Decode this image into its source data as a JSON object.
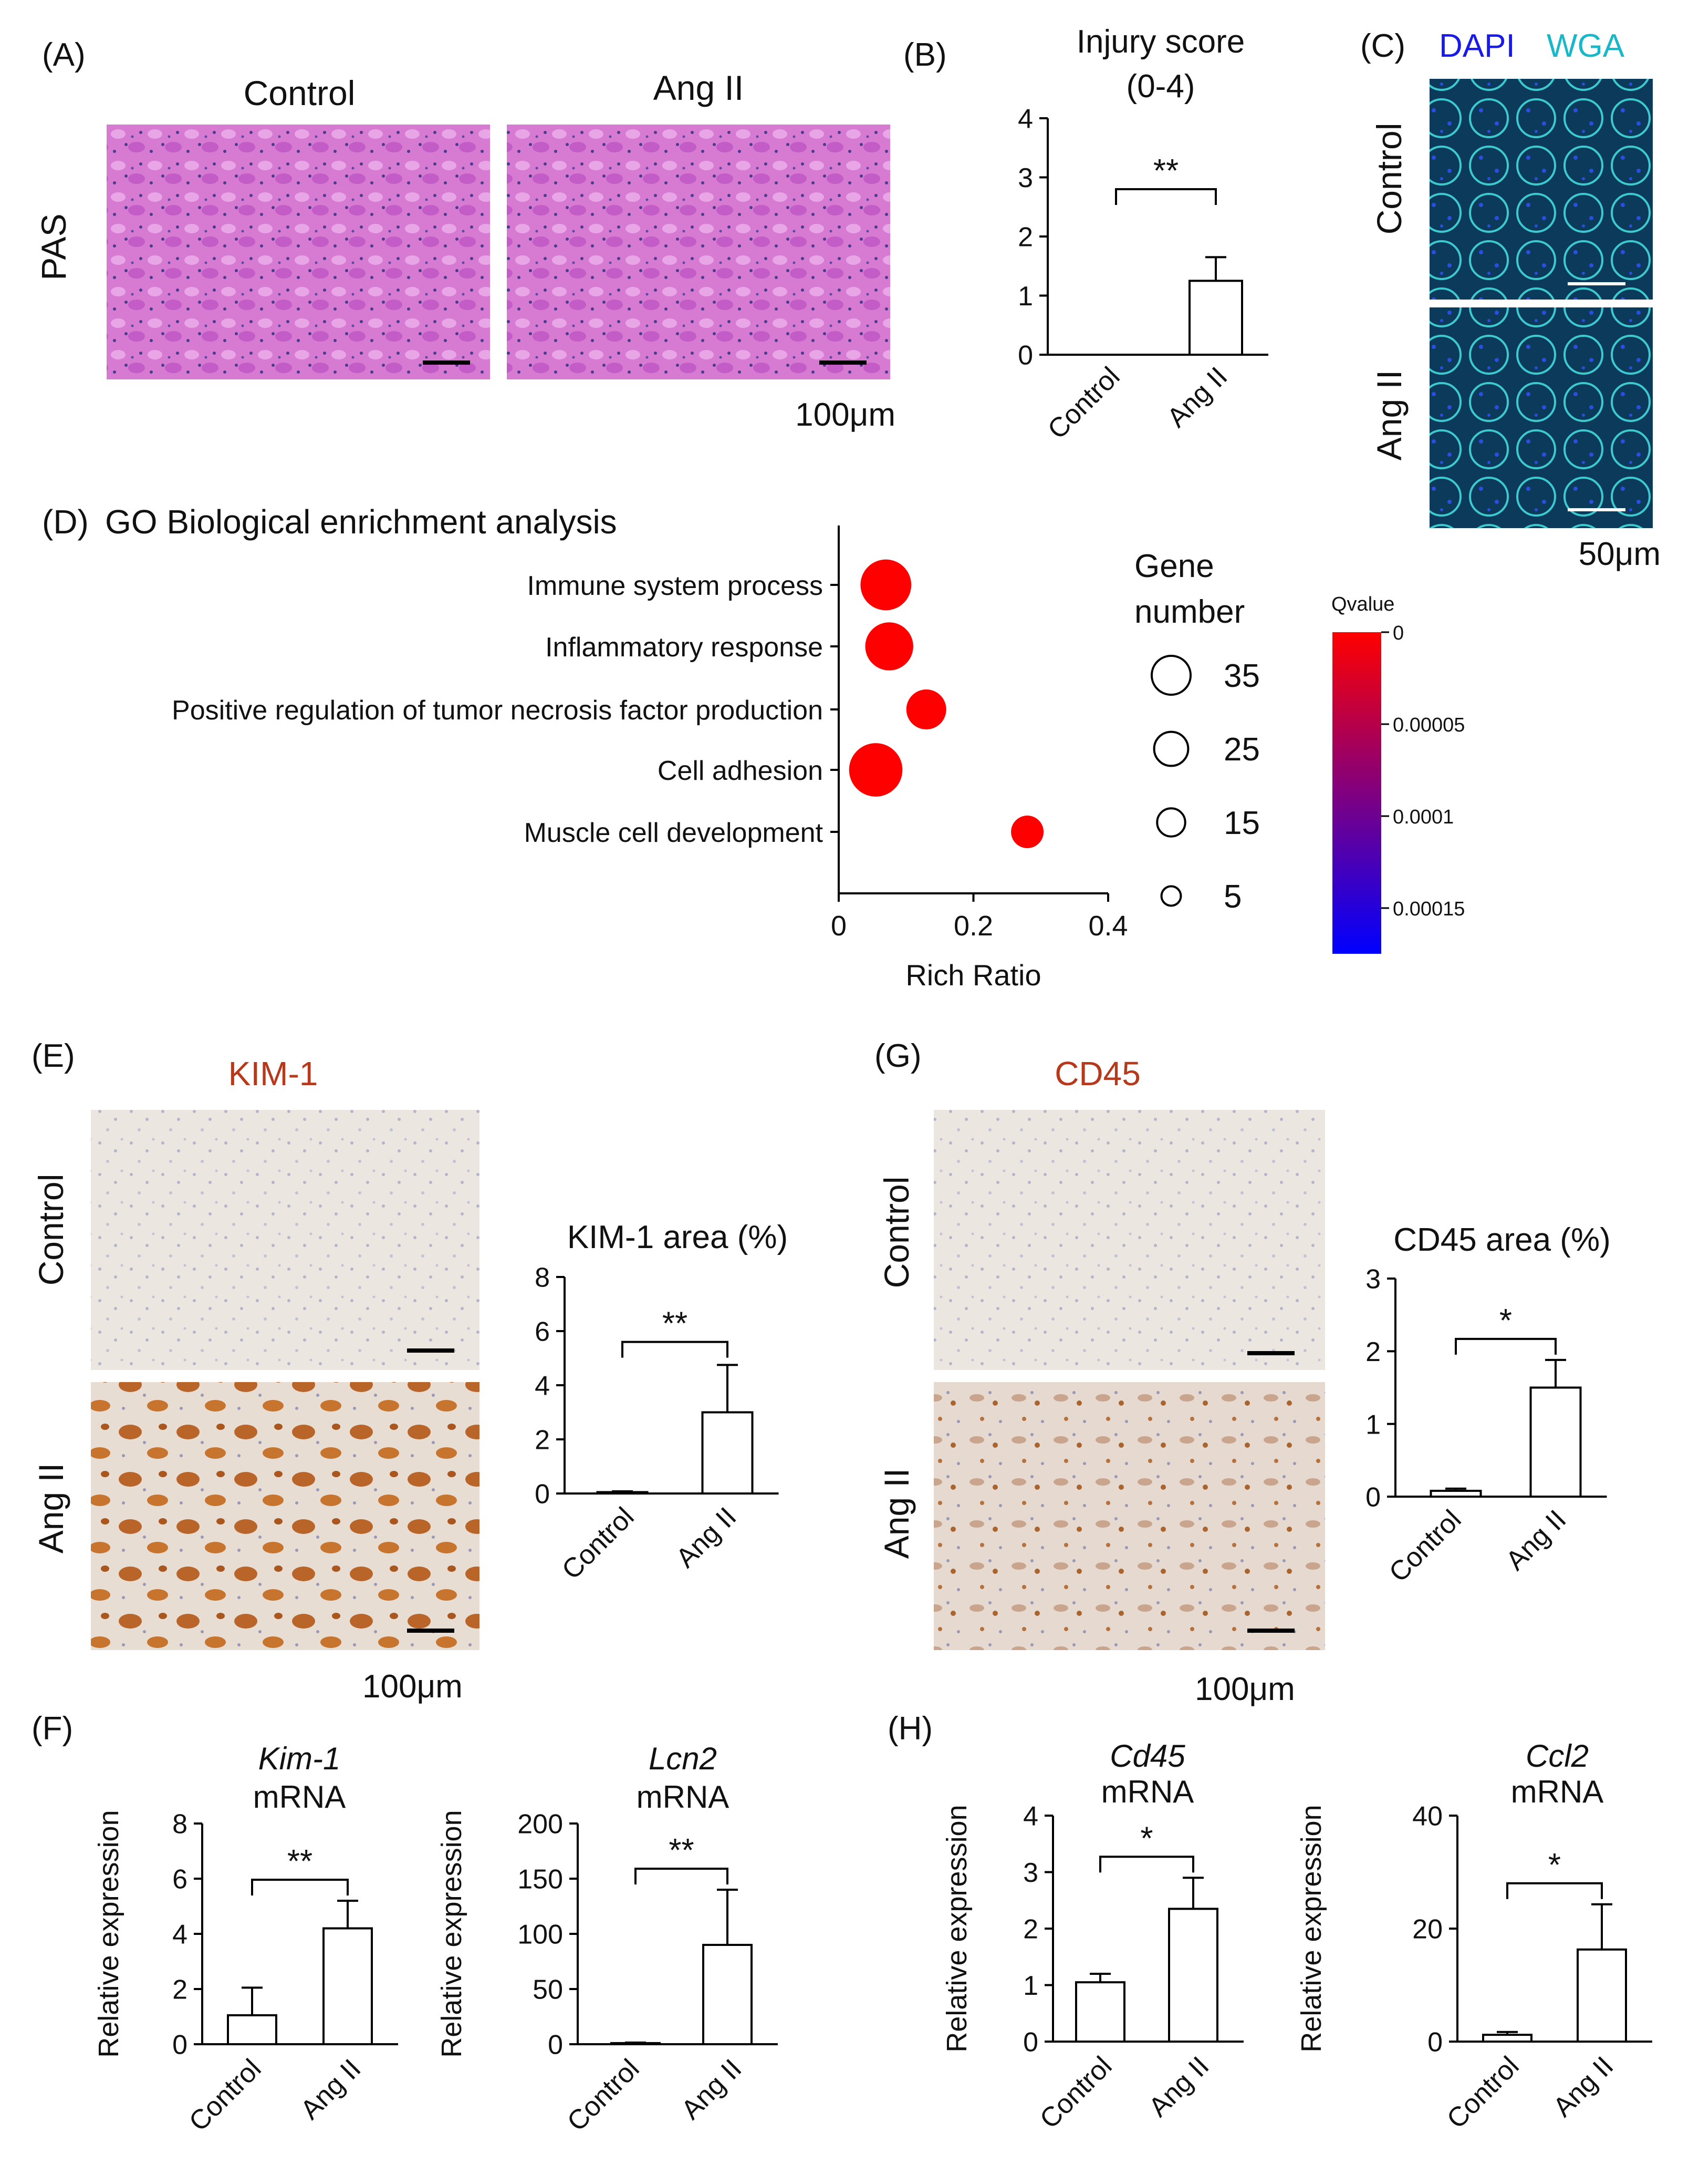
{
  "panels": {
    "A": {
      "letter": "(A)",
      "row_label": "PAS",
      "col_labels": [
        "Control",
        "Ang II"
      ],
      "scale": "100μm"
    },
    "B": {
      "letter": "(B)"
    },
    "C": {
      "letter": "(C)",
      "stain_1": "DAPI",
      "stain_2": "WGA",
      "row_labels": [
        "Control",
        "Ang II"
      ],
      "scale": "50μm",
      "stain_1_color": "#1a1ae6",
      "stain_2_color": "#18b8c8"
    },
    "D": {
      "letter": "(D)",
      "title": "GO Biological enrichment analysis"
    },
    "E": {
      "letter": "(E)",
      "stain": "KIM-1",
      "stain_color": "#b5391a",
      "row_labels": [
        "Control",
        "Ang II"
      ],
      "scale": "100μm"
    },
    "F": {
      "letter": "(F)"
    },
    "G": {
      "letter": "(G)",
      "stain": "CD45",
      "stain_color": "#b5391a",
      "row_labels": [
        "Control",
        "Ang II"
      ],
      "scale": "100μm"
    },
    "H": {
      "letter": "(H)"
    }
  },
  "chart_data": [
    {
      "id": "B",
      "type": "bar",
      "title": "Injury score\n(0-4)",
      "title_italic": "",
      "ylabel": "",
      "categories": [
        "Control",
        "Ang II"
      ],
      "values": [
        0,
        1.25
      ],
      "errors": [
        0,
        0.4
      ],
      "ylim": [
        0,
        4
      ],
      "yticks": [
        "0",
        "1",
        "2",
        "3",
        "4"
      ],
      "significance": "**"
    },
    {
      "id": "D",
      "type": "scatter",
      "categories": [
        "Immune system process",
        "Inflammatory response",
        "Positive regulation of tumor necrosis factor production",
        "Cell adhesion",
        "Muscle cell development"
      ],
      "x": [
        0.07,
        0.075,
        0.13,
        0.055,
        0.28
      ],
      "gene_number": [
        30,
        26,
        16,
        34,
        9
      ],
      "qvalue": [
        0,
        0,
        0,
        0,
        0
      ],
      "xlabel": "Rich Ratio",
      "xlim": [
        0,
        0.4
      ],
      "xticks": [
        "0",
        "0.2",
        "0.4"
      ],
      "size_legend": {
        "title": "Gene\nnumber",
        "values": [
          35,
          25,
          15,
          5
        ]
      },
      "color_legend": {
        "title": "Qvalue",
        "ticks": [
          "0",
          "0.00005",
          "0.0001",
          "0.00015"
        ],
        "low_color": "#ff0000",
        "high_color": "#0000ff"
      }
    },
    {
      "id": "E",
      "type": "bar",
      "title": "KIM-1 area (%)",
      "title_italic": "",
      "ylabel": "",
      "categories": [
        "Control",
        "Ang II"
      ],
      "values": [
        0.05,
        3.0
      ],
      "errors": [
        0.03,
        1.75
      ],
      "ylim": [
        0,
        8
      ],
      "yticks": [
        "0",
        "2",
        "4",
        "6",
        "8"
      ],
      "significance": "**"
    },
    {
      "id": "G",
      "type": "bar",
      "title": "CD45 area (%)",
      "title_italic": "",
      "ylabel": "",
      "categories": [
        "Control",
        "Ang II"
      ],
      "values": [
        0.08,
        1.5
      ],
      "errors": [
        0.03,
        0.38
      ],
      "ylim": [
        0,
        3
      ],
      "yticks": [
        "0",
        "1",
        "2",
        "3"
      ],
      "significance": "*"
    },
    {
      "id": "F1",
      "type": "bar",
      "title_italic": "Kim-1",
      "title": "mRNA",
      "ylabel": "Relative expression",
      "categories": [
        "Control",
        "Ang II"
      ],
      "values": [
        1.05,
        4.2
      ],
      "errors": [
        1.0,
        1.0
      ],
      "ylim": [
        0,
        8
      ],
      "yticks": [
        "0",
        "2",
        "4",
        "6",
        "8"
      ],
      "significance": "**"
    },
    {
      "id": "F2",
      "type": "bar",
      "title_italic": "Lcn2",
      "title": "mRNA",
      "ylabel": "Relative expression",
      "categories": [
        "Control",
        "Ang II"
      ],
      "values": [
        1,
        90
      ],
      "errors": [
        0.5,
        50
      ],
      "ylim": [
        0,
        200
      ],
      "yticks": [
        "0",
        "50",
        "100",
        "150",
        "200"
      ],
      "significance": "**"
    },
    {
      "id": "H1",
      "type": "bar",
      "title_italic": "Cd45",
      "title": "mRNA",
      "ylabel": "Relative expression",
      "categories": [
        "Control",
        "Ang II"
      ],
      "values": [
        1.05,
        2.35
      ],
      "errors": [
        0.15,
        0.55
      ],
      "ylim": [
        0,
        4
      ],
      "yticks": [
        "0",
        "1",
        "2",
        "3",
        "4"
      ],
      "significance": "*"
    },
    {
      "id": "H2",
      "type": "bar",
      "title_italic": "Ccl2",
      "title": "mRNA",
      "ylabel": "Relative expression",
      "categories": [
        "Control",
        "Ang II"
      ],
      "values": [
        1.2,
        16.3
      ],
      "errors": [
        0.5,
        8.0
      ],
      "ylim": [
        0,
        40
      ],
      "yticks": [
        "0",
        "20",
        "40"
      ],
      "significance": "*"
    }
  ]
}
